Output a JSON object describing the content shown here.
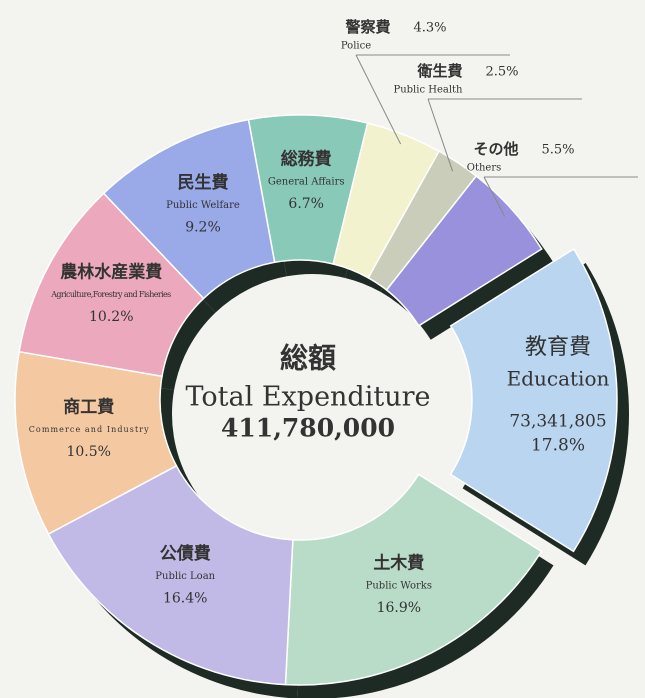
{
  "chart_data": {
    "type": "donut",
    "center_title": "総額",
    "center_subtitle": "Total Expenditure",
    "center_value": "411,780,000",
    "categories": [
      "教育費",
      "土木費",
      "公債費",
      "商工費",
      "農林水産業費",
      "民生費",
      "総務費",
      "警察費",
      "衛生費",
      "その他"
    ],
    "categories_en": [
      "Education",
      "Public Works",
      "Public Loan",
      "Commerce and Industry",
      "Agriculture,Forestry and Fisheries",
      "Public Welfare",
      "General Affairs",
      "Police",
      "Public Health",
      "Others"
    ],
    "values": [
      17.8,
      16.9,
      16.4,
      10.5,
      10.2,
      9.2,
      6.7,
      4.3,
      2.5,
      5.5
    ],
    "value_labels": [
      "17.8%",
      "16.9%",
      "16.4%",
      "10.5%",
      "10.2%",
      "9.2%",
      "6.7%",
      "4.3%",
      "2.5%",
      "5.5%"
    ],
    "education_amount": "73,341,805",
    "colors": [
      "#b9d5f0",
      "#b9dcc9",
      "#c2bae6",
      "#f4c9a2",
      "#eca9bd",
      "#9aa9e8",
      "#89c9b8",
      "#f2f2ce",
      "#c9cdb9",
      "#9a91dc"
    ]
  }
}
